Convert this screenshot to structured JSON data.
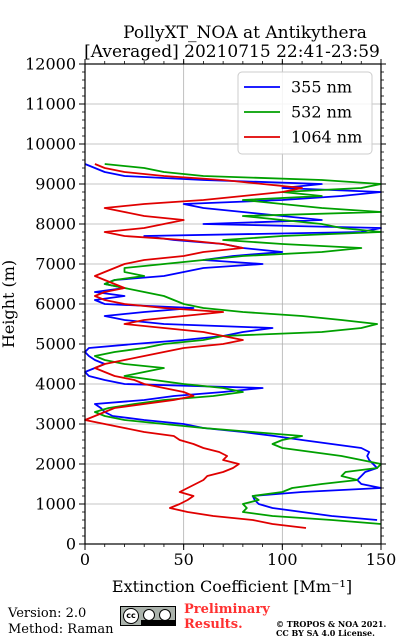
{
  "chart_data": {
    "type": "line",
    "title": "PollyXT_NOA at Antikythera",
    "subtitle": "[Averaged] 20210715 22:41-23:59",
    "xlabel": "Extinction Coefficient [Mm⁻¹]",
    "ylabel": "Height (m)",
    "xlim": [
      0,
      150
    ],
    "ylim": [
      0,
      12000
    ],
    "x_ticks": [
      0,
      50,
      100,
      150
    ],
    "y_ticks": [
      0,
      1000,
      2000,
      3000,
      4000,
      5000,
      6000,
      7000,
      8000,
      9000,
      10000,
      11000,
      12000
    ],
    "grid": true,
    "legend_position": "top-right",
    "series": [
      {
        "name": "355 nm",
        "color": "#0000ff",
        "points": [
          [
            148,
            600
          ],
          [
            125,
            700
          ],
          [
            110,
            800
          ],
          [
            95,
            900
          ],
          [
            88,
            1000
          ],
          [
            86,
            1100
          ],
          [
            85,
            1200
          ],
          [
            110,
            1300
          ],
          [
            150,
            1400
          ],
          [
            140,
            1500
          ],
          [
            138,
            1600
          ],
          [
            140,
            1700
          ],
          [
            142,
            1800
          ],
          [
            148,
            1900
          ],
          [
            146,
            2000
          ],
          [
            144,
            2100
          ],
          [
            143,
            2200
          ],
          [
            144,
            2300
          ],
          [
            140,
            2400
          ],
          [
            125,
            2500
          ],
          [
            110,
            2600
          ],
          [
            96,
            2700
          ],
          [
            80,
            2800
          ],
          [
            60,
            2900
          ],
          [
            50,
            3000
          ],
          [
            30,
            3100
          ],
          [
            14,
            3200
          ],
          [
            10,
            3300
          ],
          [
            8,
            3400
          ],
          [
            5,
            3500
          ],
          [
            30,
            3600
          ],
          [
            45,
            3700
          ],
          [
            70,
            3800
          ],
          [
            90,
            3900
          ],
          [
            20,
            4000
          ],
          [
            10,
            4100
          ],
          [
            2,
            4200
          ],
          [
            0,
            4300
          ],
          [
            5,
            4400
          ],
          [
            10,
            4500
          ],
          [
            5,
            4600
          ],
          [
            2,
            4700
          ],
          [
            0,
            4800
          ],
          [
            2,
            4900
          ],
          [
            25,
            5000
          ],
          [
            50,
            5100
          ],
          [
            70,
            5200
          ],
          [
            80,
            5300
          ],
          [
            95,
            5400
          ],
          [
            40,
            5500
          ],
          [
            20,
            5600
          ],
          [
            10,
            5700
          ],
          [
            30,
            5800
          ],
          [
            55,
            5900
          ],
          [
            10,
            6000
          ],
          [
            5,
            6100
          ],
          [
            20,
            6200
          ],
          [
            5,
            6300
          ],
          [
            20,
            6400
          ],
          [
            10,
            6500
          ],
          [
            15,
            6600
          ],
          [
            40,
            6700
          ],
          [
            50,
            6800
          ],
          [
            60,
            6900
          ],
          [
            90,
            7000
          ],
          [
            60,
            7100
          ],
          [
            75,
            7200
          ],
          [
            100,
            7300
          ],
          [
            80,
            7400
          ],
          [
            70,
            7500
          ],
          [
            45,
            7600
          ],
          [
            30,
            7700
          ],
          [
            140,
            7800
          ],
          [
            150,
            7900
          ],
          [
            60,
            8000
          ],
          [
            120,
            8100
          ],
          [
            100,
            8200
          ],
          [
            80,
            8300
          ],
          [
            60,
            8400
          ],
          [
            50,
            8500
          ],
          [
            100,
            8600
          ],
          [
            130,
            8700
          ],
          [
            150,
            8800
          ],
          [
            100,
            8900
          ],
          [
            120,
            9000
          ],
          [
            60,
            9100
          ],
          [
            20,
            9200
          ],
          [
            10,
            9300
          ],
          [
            5,
            9400
          ],
          [
            0,
            9500
          ]
        ]
      },
      {
        "name": "532 nm",
        "color": "#00a000",
        "points": [
          [
            150,
            500
          ],
          [
            125,
            600
          ],
          [
            95,
            700
          ],
          [
            80,
            800
          ],
          [
            82,
            900
          ],
          [
            80,
            1000
          ],
          [
            88,
            1100
          ],
          [
            85,
            1200
          ],
          [
            100,
            1300
          ],
          [
            105,
            1400
          ],
          [
            120,
            1500
          ],
          [
            138,
            1600
          ],
          [
            130,
            1700
          ],
          [
            132,
            1800
          ],
          [
            148,
            1900
          ],
          [
            150,
            2000
          ],
          [
            140,
            2100
          ],
          [
            130,
            2200
          ],
          [
            115,
            2300
          ],
          [
            100,
            2400
          ],
          [
            95,
            2500
          ],
          [
            100,
            2600
          ],
          [
            110,
            2700
          ],
          [
            85,
            2800
          ],
          [
            60,
            2900
          ],
          [
            40,
            3000
          ],
          [
            20,
            3100
          ],
          [
            10,
            3200
          ],
          [
            5,
            3300
          ],
          [
            12,
            3400
          ],
          [
            25,
            3500
          ],
          [
            40,
            3600
          ],
          [
            65,
            3700
          ],
          [
            80,
            3800
          ],
          [
            70,
            3900
          ],
          [
            50,
            4000
          ],
          [
            35,
            4100
          ],
          [
            20,
            4200
          ],
          [
            30,
            4300
          ],
          [
            40,
            4400
          ],
          [
            20,
            4500
          ],
          [
            10,
            4600
          ],
          [
            5,
            4700
          ],
          [
            15,
            4800
          ],
          [
            30,
            4900
          ],
          [
            40,
            5000
          ],
          [
            60,
            5100
          ],
          [
            70,
            5200
          ],
          [
            120,
            5300
          ],
          [
            140,
            5400
          ],
          [
            148,
            5500
          ],
          [
            130,
            5600
          ],
          [
            110,
            5700
          ],
          [
            80,
            5800
          ],
          [
            60,
            5900
          ],
          [
            50,
            6000
          ],
          [
            45,
            6100
          ],
          [
            40,
            6200
          ],
          [
            30,
            6300
          ],
          [
            20,
            6400
          ],
          [
            10,
            6500
          ],
          [
            15,
            6600
          ],
          [
            30,
            6700
          ],
          [
            20,
            6800
          ],
          [
            20,
            6900
          ],
          [
            40,
            7000
          ],
          [
            60,
            7100
          ],
          [
            80,
            7200
          ],
          [
            120,
            7300
          ],
          [
            140,
            7400
          ],
          [
            100,
            7500
          ],
          [
            70,
            7600
          ],
          [
            100,
            7700
          ],
          [
            150,
            7800
          ],
          [
            130,
            7900
          ],
          [
            120,
            8000
          ],
          [
            100,
            8100
          ],
          [
            80,
            8200
          ],
          [
            150,
            8300
          ],
          [
            120,
            8400
          ],
          [
            100,
            8500
          ],
          [
            80,
            8600
          ],
          [
            120,
            8700
          ],
          [
            100,
            8800
          ],
          [
            140,
            8900
          ],
          [
            150,
            9000
          ],
          [
            120,
            9100
          ],
          [
            60,
            9200
          ],
          [
            40,
            9300
          ],
          [
            30,
            9400
          ],
          [
            10,
            9500
          ]
        ]
      },
      {
        "name": "1064 nm",
        "color": "#e00000",
        "points": [
          [
            112,
            400
          ],
          [
            95,
            500
          ],
          [
            85,
            600
          ],
          [
            65,
            700
          ],
          [
            52,
            800
          ],
          [
            43,
            900
          ],
          [
            48,
            1000
          ],
          [
            52,
            1100
          ],
          [
            55,
            1200
          ],
          [
            48,
            1300
          ],
          [
            52,
            1400
          ],
          [
            56,
            1500
          ],
          [
            60,
            1600
          ],
          [
            62,
            1700
          ],
          [
            70,
            1800
          ],
          [
            75,
            1900
          ],
          [
            78,
            2000
          ],
          [
            70,
            2100
          ],
          [
            72,
            2200
          ],
          [
            68,
            2300
          ],
          [
            60,
            2400
          ],
          [
            55,
            2500
          ],
          [
            48,
            2600
          ],
          [
            45,
            2700
          ],
          [
            30,
            2800
          ],
          [
            20,
            2900
          ],
          [
            10,
            3000
          ],
          [
            0,
            3100
          ],
          [
            5,
            3200
          ],
          [
            10,
            3300
          ],
          [
            15,
            3400
          ],
          [
            30,
            3500
          ],
          [
            45,
            3600
          ],
          [
            55,
            3700
          ],
          [
            50,
            3800
          ],
          [
            40,
            3900
          ],
          [
            30,
            4000
          ],
          [
            25,
            4100
          ],
          [
            15,
            4200
          ],
          [
            10,
            4300
          ],
          [
            5,
            4400
          ],
          [
            10,
            4500
          ],
          [
            20,
            4600
          ],
          [
            30,
            4700
          ],
          [
            40,
            4800
          ],
          [
            50,
            4900
          ],
          [
            70,
            5000
          ],
          [
            80,
            5100
          ],
          [
            70,
            5200
          ],
          [
            60,
            5300
          ],
          [
            40,
            5400
          ],
          [
            20,
            5500
          ],
          [
            30,
            5600
          ],
          [
            50,
            5700
          ],
          [
            70,
            5800
          ],
          [
            40,
            5900
          ],
          [
            20,
            6000
          ],
          [
            10,
            6100
          ],
          [
            5,
            6200
          ],
          [
            10,
            6300
          ],
          [
            20,
            6400
          ],
          [
            15,
            6500
          ],
          [
            10,
            6600
          ],
          [
            5,
            6700
          ],
          [
            10,
            6800
          ],
          [
            15,
            6900
          ],
          [
            20,
            7000
          ],
          [
            30,
            7100
          ],
          [
            50,
            7200
          ],
          [
            60,
            7300
          ],
          [
            80,
            7400
          ],
          [
            70,
            7500
          ],
          [
            50,
            7600
          ],
          [
            20,
            7700
          ],
          [
            10,
            7800
          ],
          [
            30,
            7900
          ],
          [
            40,
            8000
          ],
          [
            50,
            8100
          ],
          [
            30,
            8200
          ],
          [
            20,
            8300
          ],
          [
            10,
            8400
          ],
          [
            30,
            8500
          ],
          [
            60,
            8600
          ],
          [
            80,
            8700
          ],
          [
            100,
            8800
          ],
          [
            110,
            8900
          ],
          [
            90,
            9000
          ],
          [
            70,
            9100
          ],
          [
            40,
            9200
          ],
          [
            20,
            9300
          ],
          [
            10,
            9400
          ],
          [
            5,
            9500
          ]
        ]
      }
    ]
  },
  "footer": {
    "version": "Version: 2.0",
    "method": "Method: Raman",
    "license_badge_icons": [
      "cc-icon",
      "by-icon",
      "sa-icon"
    ],
    "preliminary": "Preliminary Results.",
    "copyright_line1": "© TROPOS & NOA 2021.",
    "copyright_line2": "CC BY SA 4.0 License."
  }
}
